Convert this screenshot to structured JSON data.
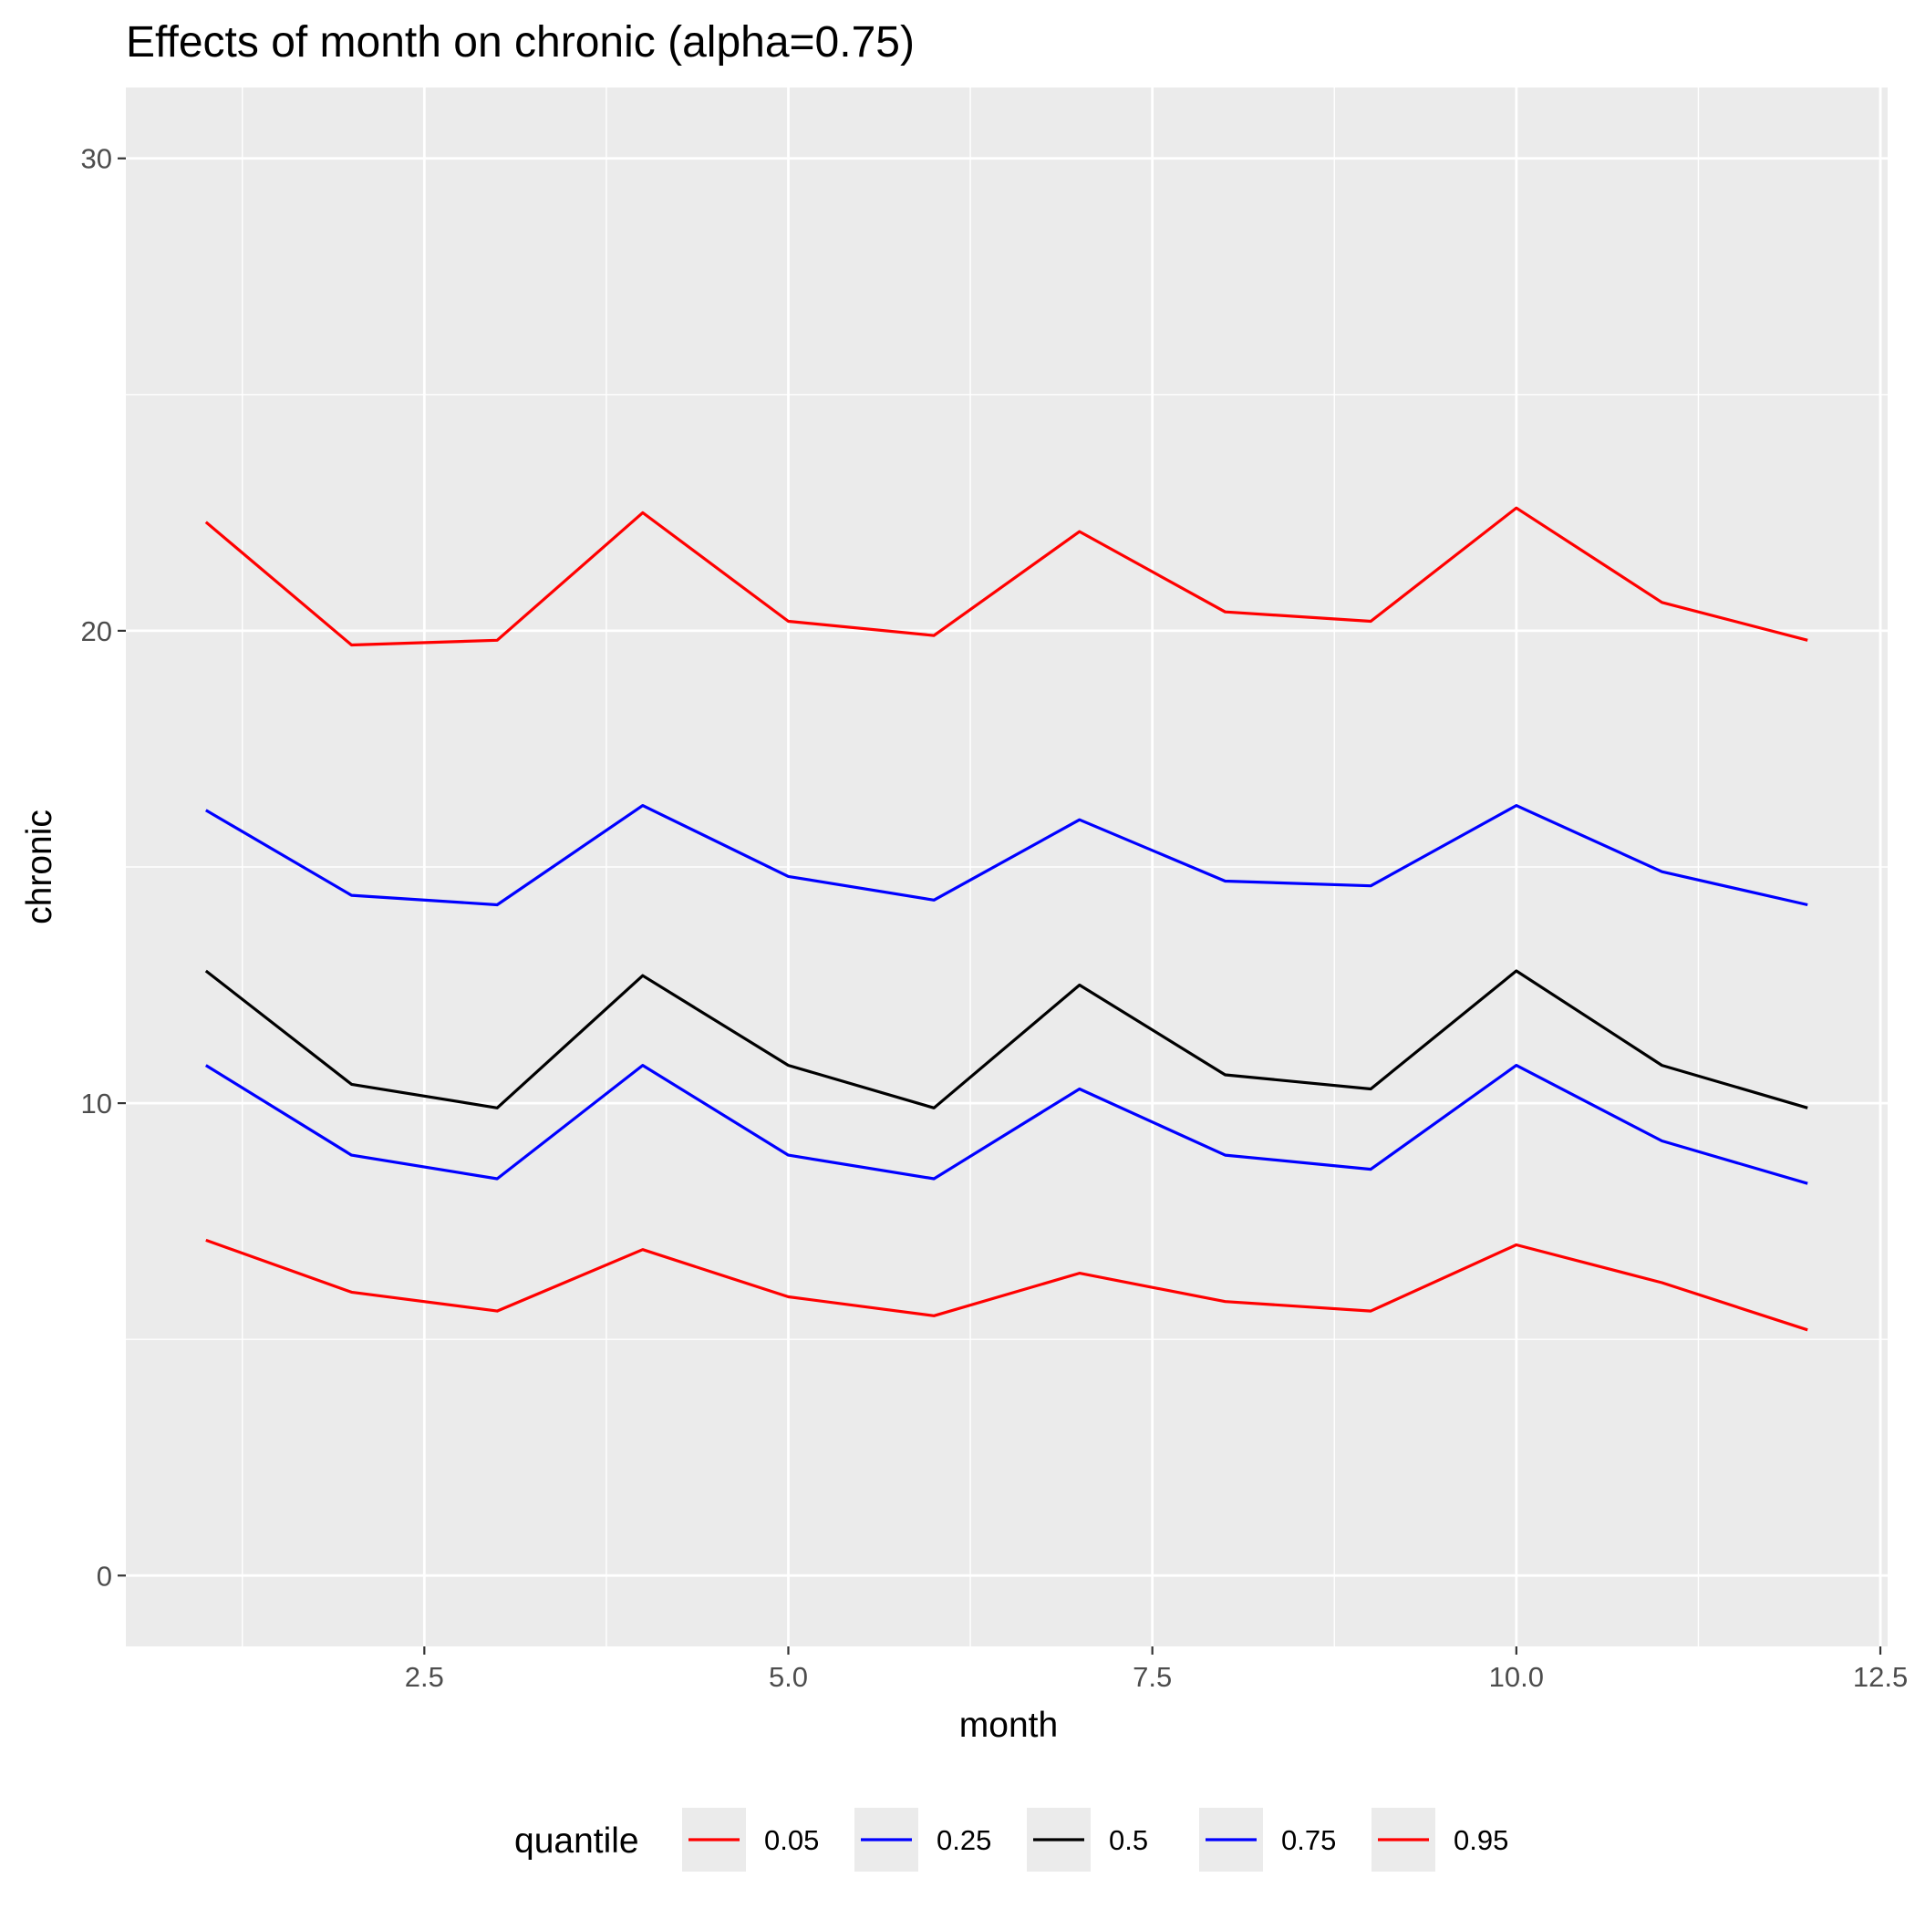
{
  "chart_data": {
    "type": "line",
    "title": "Effects of month on chronic (alpha=0.75)",
    "xlabel": "month",
    "ylabel": "chronic",
    "xlim": [
      0.45,
      12.55
    ],
    "ylim": [
      -1.5,
      31.5
    ],
    "x_ticks": [
      2.5,
      5.0,
      7.5,
      10.0,
      12.5
    ],
    "x_tick_labels": [
      "2.5",
      "5.0",
      "7.5",
      "10.0",
      "12.5"
    ],
    "y_ticks": [
      0,
      10,
      20,
      30
    ],
    "y_tick_labels": [
      "0",
      "10",
      "20",
      "30"
    ],
    "grid": true,
    "legend": {
      "title": "quantile",
      "placement": "bottom"
    },
    "x": [
      1,
      2,
      3,
      4,
      5,
      6,
      7,
      8,
      9,
      10,
      11,
      12
    ],
    "series": [
      {
        "name": "0.05",
        "color": "#ff0000",
        "values": [
          7.1,
          6.0,
          5.6,
          6.9,
          5.9,
          5.5,
          6.4,
          5.8,
          5.6,
          7.0,
          6.2,
          5.2
        ]
      },
      {
        "name": "0.25",
        "color": "#0000ff",
        "values": [
          10.8,
          8.9,
          8.4,
          10.8,
          8.9,
          8.4,
          10.3,
          8.9,
          8.6,
          10.8,
          9.2,
          8.3
        ]
      },
      {
        "name": "0.5",
        "color": "#000000",
        "values": [
          12.8,
          10.4,
          9.9,
          12.7,
          10.8,
          9.9,
          12.5,
          10.6,
          10.3,
          12.8,
          10.8,
          9.9
        ]
      },
      {
        "name": "0.75",
        "color": "#0000ff",
        "values": [
          16.2,
          14.4,
          14.2,
          16.3,
          14.8,
          14.3,
          16.0,
          14.7,
          14.6,
          16.3,
          14.9,
          14.2
        ]
      },
      {
        "name": "0.95",
        "color": "#ff0000",
        "values": [
          22.3,
          19.7,
          19.8,
          22.5,
          20.2,
          19.9,
          22.1,
          20.4,
          20.2,
          22.6,
          20.6,
          19.8
        ]
      }
    ]
  }
}
